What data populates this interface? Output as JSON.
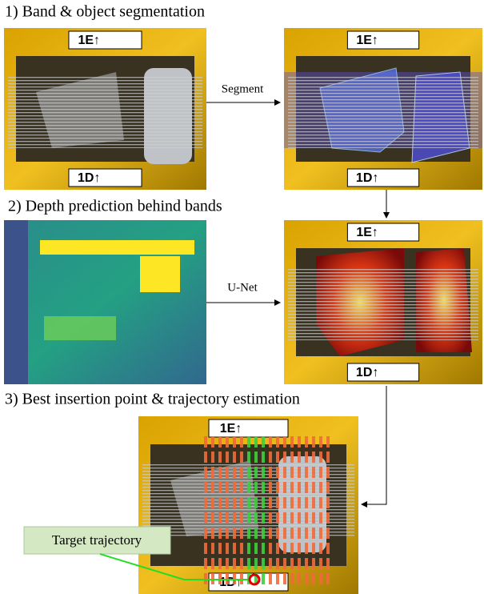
{
  "sections": [
    {
      "title": "1) Band & object segmentation",
      "arrow_label": "Segment"
    },
    {
      "title": "2) Depth prediction behind bands",
      "arrow_label": "U-Net"
    },
    {
      "title": "3) Best insertion point & trajectory estimation"
    }
  ],
  "photo_labels": {
    "top": "1E↑",
    "bottom": "1D↑"
  },
  "callout": "Target trajectory"
}
